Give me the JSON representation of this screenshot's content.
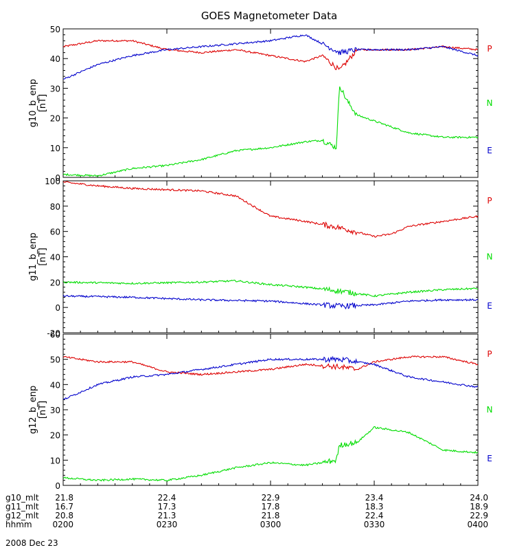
{
  "chart_data": [
    {
      "type": "line",
      "title": "GOES Magnetometer Data",
      "ylabel": "g10_b_enp",
      "yunit": "[nT]",
      "ylim": [
        0,
        50
      ],
      "yticks": [
        0,
        10,
        20,
        30,
        40,
        50
      ],
      "xlim": [
        "02:00",
        "04:00"
      ],
      "series": [
        {
          "name": "P",
          "color": "#dd0000",
          "x": [
            "02:00",
            "02:10",
            "02:20",
            "02:30",
            "02:40",
            "02:50",
            "03:00",
            "03:10",
            "03:15",
            "03:20",
            "03:25",
            "03:30",
            "03:40",
            "03:50",
            "04:00"
          ],
          "y": [
            44,
            46,
            46,
            43,
            42,
            43,
            41,
            39,
            41,
            36,
            43,
            43,
            43,
            44,
            43
          ]
        },
        {
          "name": "N",
          "color": "#00dd00",
          "x": [
            "02:00",
            "02:10",
            "02:20",
            "02:30",
            "02:40",
            "02:50",
            "03:00",
            "03:10",
            "03:15",
            "03:19",
            "03:20",
            "03:22",
            "03:25",
            "03:30",
            "03:40",
            "03:50",
            "04:00"
          ],
          "y": [
            1,
            0.5,
            3,
            4,
            6,
            9,
            10,
            12,
            12.5,
            10,
            31,
            26,
            21,
            19,
            15,
            13.5,
            13.5
          ]
        },
        {
          "name": "E",
          "color": "#0000cc",
          "x": [
            "02:00",
            "02:10",
            "02:20",
            "02:30",
            "02:40",
            "02:50",
            "03:00",
            "03:10",
            "03:15",
            "03:20",
            "03:25",
            "03:30",
            "03:40",
            "03:50",
            "04:00"
          ],
          "y": [
            33,
            38,
            41,
            43,
            44,
            45,
            46,
            48,
            45,
            42,
            43,
            43,
            43,
            44,
            41
          ]
        }
      ]
    },
    {
      "type": "line",
      "ylabel": "g11_b_enp",
      "yunit": "[nT]",
      "ylim": [
        -20,
        100
      ],
      "yticks": [
        -20,
        0,
        20,
        40,
        60,
        80,
        100
      ],
      "xlim": [
        "02:00",
        "04:00"
      ],
      "series": [
        {
          "name": "P",
          "color": "#dd0000",
          "x": [
            "02:00",
            "02:10",
            "02:20",
            "02:30",
            "02:40",
            "02:50",
            "02:55",
            "03:00",
            "03:10",
            "03:20",
            "03:30",
            "03:35",
            "03:40",
            "03:50",
            "04:00"
          ],
          "y": [
            99,
            96,
            94,
            93,
            92,
            88,
            80,
            72,
            68,
            63,
            56,
            58,
            64,
            68,
            72
          ]
        },
        {
          "name": "N",
          "color": "#00dd00",
          "x": [
            "02:00",
            "02:20",
            "02:40",
            "02:50",
            "03:00",
            "03:10",
            "03:20",
            "03:30",
            "03:40",
            "03:50",
            "04:00"
          ],
          "y": [
            20,
            19,
            20,
            21,
            18,
            16,
            13,
            9,
            12,
            14,
            15
          ]
        },
        {
          "name": "E",
          "color": "#0000cc",
          "x": [
            "02:00",
            "02:20",
            "02:40",
            "03:00",
            "03:10",
            "03:20",
            "03:30",
            "03:40",
            "03:50",
            "04:00"
          ],
          "y": [
            9,
            8,
            6,
            5,
            3,
            1,
            2,
            5,
            6,
            6
          ]
        }
      ]
    },
    {
      "type": "line",
      "ylabel": "g12_b_enp",
      "yunit": "[nT]",
      "ylim": [
        0,
        60
      ],
      "yticks": [
        0,
        10,
        20,
        30,
        40,
        50,
        60
      ],
      "xlim": [
        "02:00",
        "04:00"
      ],
      "series": [
        {
          "name": "P",
          "color": "#dd0000",
          "x": [
            "02:00",
            "02:10",
            "02:20",
            "02:30",
            "02:40",
            "02:50",
            "03:00",
            "03:10",
            "03:20",
            "03:25",
            "03:30",
            "03:40",
            "03:50",
            "04:00"
          ],
          "y": [
            51,
            49,
            49,
            45,
            44,
            45,
            46,
            48,
            47,
            46,
            49,
            51,
            51,
            48
          ]
        },
        {
          "name": "N",
          "color": "#00dd00",
          "x": [
            "02:00",
            "02:10",
            "02:20",
            "02:30",
            "02:40",
            "02:50",
            "03:00",
            "03:10",
            "03:15",
            "03:19",
            "03:20",
            "03:25",
            "03:30",
            "03:40",
            "03:50",
            "04:00"
          ],
          "y": [
            3,
            2,
            2.5,
            2,
            4,
            7,
            9,
            8,
            9,
            10,
            16,
            17,
            23,
            21,
            14,
            13
          ]
        },
        {
          "name": "E",
          "color": "#0000cc",
          "x": [
            "02:00",
            "02:10",
            "02:20",
            "02:30",
            "02:40",
            "02:50",
            "03:00",
            "03:10",
            "03:20",
            "03:30",
            "03:40",
            "03:50",
            "04:00"
          ],
          "y": [
            34,
            40,
            43,
            44,
            46,
            48,
            50,
            50,
            50,
            48,
            43,
            41,
            39
          ]
        }
      ]
    }
  ],
  "xaxis": {
    "rows": [
      {
        "label": "g10_mlt",
        "values": [
          "21.8",
          "22.4",
          "22.9",
          "23.4",
          "24.0"
        ]
      },
      {
        "label": "g11_mlt",
        "values": [
          "16.7",
          "17.3",
          "17.8",
          "18.3",
          "18.9"
        ]
      },
      {
        "label": "g12_mlt",
        "values": [
          "20.8",
          "21.3",
          "21.8",
          "22.4",
          "22.9"
        ]
      },
      {
        "label": "hhmm",
        "values": [
          "0200",
          "0230",
          "0300",
          "0330",
          "0400"
        ]
      }
    ],
    "ticks": [
      "02:00",
      "02:30",
      "03:00",
      "03:30",
      "04:00"
    ],
    "date": "2008 Dec 23"
  }
}
